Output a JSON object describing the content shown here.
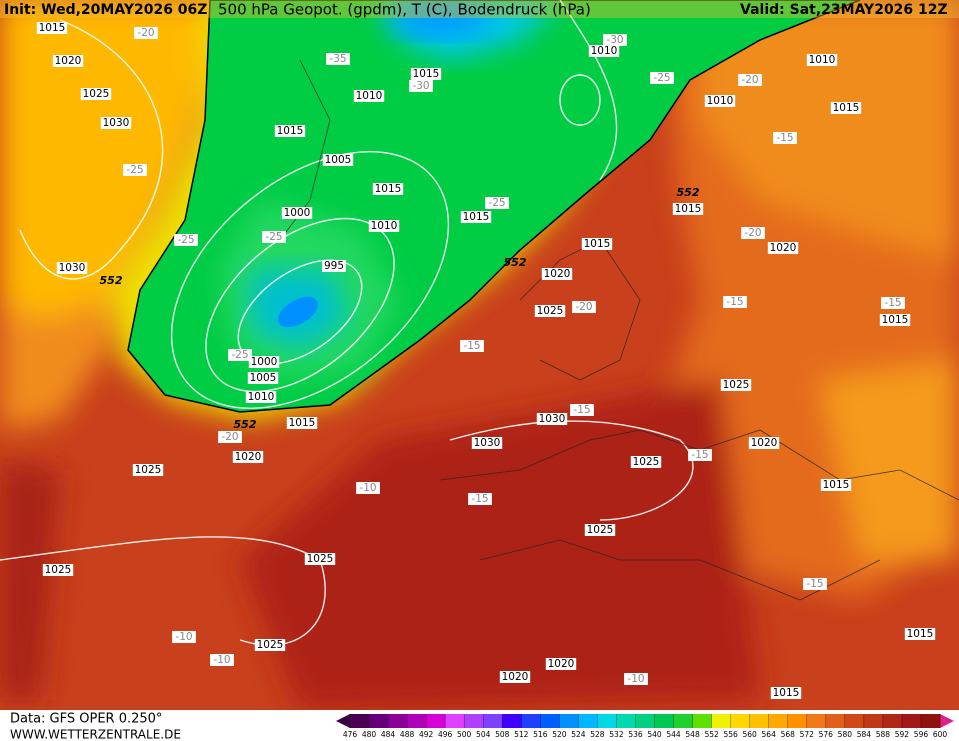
{
  "header": {
    "init": "Init: Wed,20MAY2026 06Z",
    "title": "500 hPa Geopot. (gpdm), T (C), Bodendruck (hPa)",
    "valid": "Valid: Sat,23MAY2026 12Z"
  },
  "map": {
    "isobar_labels": [
      1015,
      1020,
      1025,
      1030,
      1030,
      1015,
      1010,
      1015,
      1005,
      1015,
      1000,
      1010,
      1015,
      995,
      1000,
      1005,
      1010,
      1015,
      1020,
      1025,
      1010,
      1010,
      1015,
      1010,
      1015,
      1015,
      1020,
      1025,
      1020,
      1015,
      1025,
      1030,
      1030,
      1025,
      1020,
      1015,
      1025,
      1025,
      1025,
      1025,
      1020,
      1020,
      1015,
      1015
    ],
    "temperature_labels": [
      -20,
      -35,
      -30,
      -30,
      -25,
      -20,
      -15,
      -25,
      -25,
      -25,
      -25,
      -20,
      -20,
      -15,
      -15,
      -15,
      -25,
      -20,
      -15,
      -15,
      -10,
      -15,
      -15,
      -10,
      -10,
      -10
    ],
    "contour_552_labels": [
      552,
      552,
      552,
      552
    ]
  },
  "footer": {
    "source": "Data: GFS OPER 0.250°",
    "site": "WWW.WETTERZENTRALE.DE"
  },
  "colorbar": {
    "ticks": [
      476,
      480,
      484,
      488,
      492,
      496,
      500,
      504,
      508,
      512,
      516,
      520,
      524,
      528,
      532,
      536,
      540,
      544,
      548,
      552,
      556,
      560,
      564,
      568,
      572,
      576,
      580,
      584,
      588,
      592,
      596,
      600
    ],
    "colors": [
      "#4b0055",
      "#66007a",
      "#8a0099",
      "#b000b8",
      "#d600d6",
      "#e040ff",
      "#b040ff",
      "#8040ff",
      "#4000ff",
      "#2040ff",
      "#0060ff",
      "#0090ff",
      "#00b8ff",
      "#00d8e8",
      "#00d8b0",
      "#00d080",
      "#00c850",
      "#20d030",
      "#60e000",
      "#f0f000",
      "#ffd800",
      "#ffc000",
      "#ffa800",
      "#ff9000",
      "#f07818",
      "#e06018",
      "#d04818",
      "#c03818",
      "#b02818",
      "#a01818",
      "#901010"
    ],
    "low_color": "#3a0040",
    "high_color": "#e0208a"
  }
}
